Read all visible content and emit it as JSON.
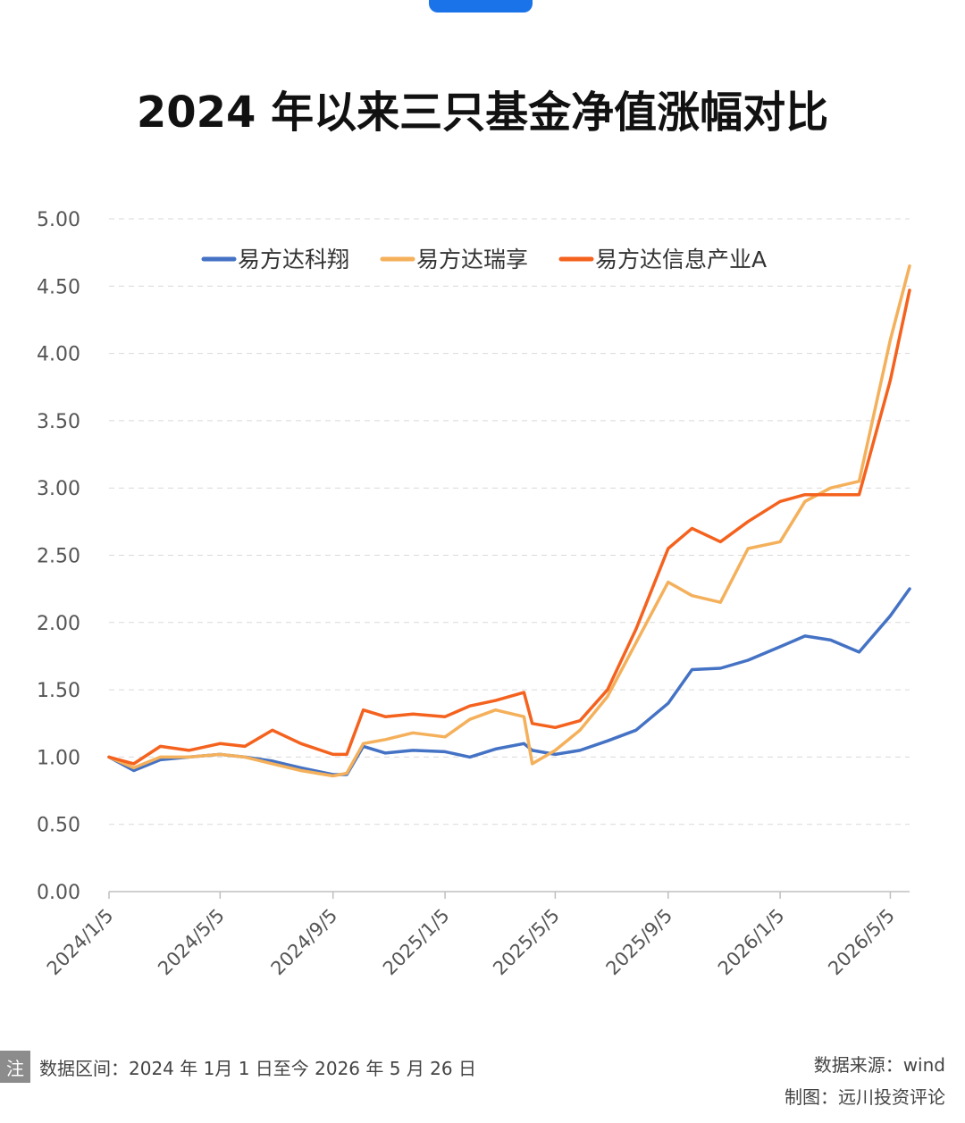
{
  "header": {
    "title": "2024 年以来三只基金净值涨幅对比"
  },
  "footer": {
    "note_badge": "注",
    "note_text": "数据区间：2024 年 1月 1 日至今 2026 年 5 月 26 日",
    "source": "数据来源：wind",
    "maker": "制图：远川投资评论"
  },
  "chart_data": {
    "type": "line",
    "title": "2024 年以来三只基金净值涨幅对比",
    "xlabel": "",
    "ylabel": "",
    "ylim": [
      0,
      5
    ],
    "yticks": [
      "0.00",
      "0.50",
      "1.00",
      "1.50",
      "2.00",
      "2.50",
      "3.00",
      "3.50",
      "4.00",
      "4.50",
      "5.00"
    ],
    "xticks": [
      "2024/1/5",
      "2024/5/5",
      "2024/9/5",
      "2025/1/5",
      "2025/5/5",
      "2025/9/5",
      "2026/1/5",
      "2026/5/5"
    ],
    "xlim": [
      "2024/1/5",
      "2026/5/26"
    ],
    "grid": true,
    "legend_position": "top",
    "x": [
      "2024/1/5",
      "2024/2/1",
      "2024/3/1",
      "2024/4/1",
      "2024/5/5",
      "2024/6/1",
      "2024/7/1",
      "2024/8/1",
      "2024/9/5",
      "2024/9/20",
      "2024/10/8",
      "2024/11/1",
      "2024/12/1",
      "2025/1/5",
      "2025/2/1",
      "2025/3/1",
      "2025/4/1",
      "2025/4/10",
      "2025/5/5",
      "2025/6/1",
      "2025/7/1",
      "2025/8/1",
      "2025/9/5",
      "2025/10/1",
      "2025/11/1",
      "2025/12/1",
      "2026/1/5",
      "2026/2/1",
      "2026/3/1",
      "2026/4/1",
      "2026/5/5",
      "2026/5/26"
    ],
    "series": [
      {
        "name": "易方达科翔",
        "color": "#4472c4",
        "values": [
          1.0,
          0.9,
          0.98,
          1.0,
          1.02,
          1.0,
          0.97,
          0.92,
          0.87,
          0.87,
          1.08,
          1.03,
          1.05,
          1.04,
          1.0,
          1.06,
          1.1,
          1.05,
          1.02,
          1.05,
          1.12,
          1.2,
          1.4,
          1.65,
          1.66,
          1.72,
          1.82,
          1.9,
          1.87,
          1.78,
          2.05,
          2.25
        ]
      },
      {
        "name": "易方达瑞享",
        "color": "#f4b05b",
        "values": [
          1.0,
          0.92,
          1.0,
          1.0,
          1.02,
          1.0,
          0.95,
          0.9,
          0.86,
          0.88,
          1.1,
          1.13,
          1.18,
          1.15,
          1.28,
          1.35,
          1.3,
          0.95,
          1.05,
          1.2,
          1.45,
          1.85,
          2.3,
          2.2,
          2.15,
          2.55,
          2.6,
          2.9,
          3.0,
          3.05,
          4.1,
          4.65
        ]
      },
      {
        "name": "易方达信息产业A",
        "color": "#f4621e",
        "values": [
          1.0,
          0.95,
          1.08,
          1.05,
          1.1,
          1.08,
          1.2,
          1.1,
          1.02,
          1.02,
          1.35,
          1.3,
          1.32,
          1.3,
          1.38,
          1.42,
          1.48,
          1.25,
          1.22,
          1.27,
          1.5,
          1.95,
          2.55,
          2.7,
          2.6,
          2.75,
          2.9,
          2.95,
          2.95,
          2.95,
          3.8,
          4.47
        ]
      }
    ]
  }
}
